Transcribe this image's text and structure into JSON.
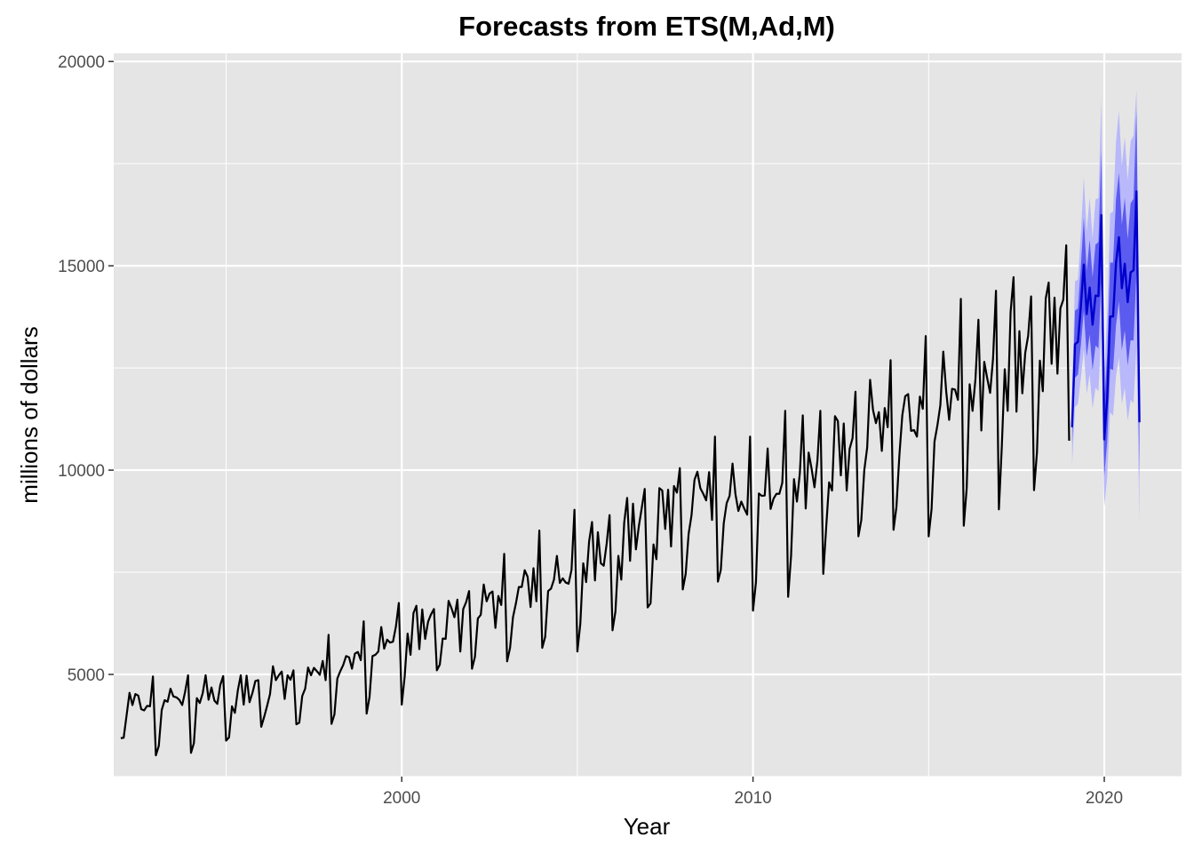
{
  "chart_data": {
    "type": "line",
    "title": "Forecasts from ETS(M,Ad,M)",
    "xlabel": "Year",
    "ylabel": "millions of dollars",
    "xlim": [
      1991.8,
      2022.2
    ],
    "ylim": [
      2500,
      20200
    ],
    "x_ticks": [
      2000,
      2010,
      2020
    ],
    "x_tick_labels": [
      "2000",
      "2010",
      "2020"
    ],
    "x_minor_ticks": [
      1995,
      2005,
      2015
    ],
    "y_ticks": [
      5000,
      10000,
      15000,
      20000
    ],
    "y_tick_labels": [
      "5000",
      "10000",
      "15000",
      "20000"
    ],
    "y_minor_ticks": [
      2500,
      7500,
      12500,
      17500
    ],
    "grid": true,
    "legend": "none",
    "colors": {
      "panel": "#e5e5e5",
      "grid": "#ffffff",
      "history": "#000000",
      "forecast": "#0000cc",
      "pi80": "#5b5bf0",
      "pi95": "#b8b8fb"
    },
    "series": [
      {
        "role": "history",
        "start": [
          1992,
          1
        ],
        "frequency": 12,
        "values": [
          3440,
          3450,
          4000,
          4550,
          4250,
          4520,
          4480,
          4150,
          4120,
          4230,
          4220,
          4950,
          3020,
          3250,
          4130,
          4370,
          4330,
          4650,
          4460,
          4440,
          4380,
          4250,
          4580,
          4980,
          3080,
          3320,
          4420,
          4300,
          4540,
          4980,
          4380,
          4680,
          4360,
          4280,
          4740,
          4960,
          3380,
          3460,
          4220,
          4060,
          4610,
          4980,
          4260,
          4970,
          4320,
          4550,
          4840,
          4860,
          3720,
          3960,
          4230,
          4520,
          5200,
          4860,
          4980,
          5070,
          4400,
          4980,
          4870,
          5100,
          3780,
          3820,
          4470,
          4650,
          5170,
          4980,
          5160,
          5080,
          4990,
          5330,
          4860,
          5970,
          3790,
          4020,
          4900,
          5080,
          5230,
          5450,
          5420,
          5140,
          5510,
          5550,
          5350,
          6300,
          4040,
          4450,
          5450,
          5480,
          5560,
          6160,
          5630,
          5850,
          5780,
          5800,
          6170,
          6750,
          4260,
          4950,
          6000,
          5480,
          6500,
          6680,
          5620,
          6590,
          5870,
          6290,
          6470,
          6600,
          5100,
          5240,
          5880,
          5870,
          6800,
          6620,
          6400,
          6830,
          5560,
          6600,
          6770,
          7040,
          5140,
          5430,
          6370,
          6460,
          7200,
          6790,
          6980,
          7030,
          6140,
          6920,
          6700,
          7950,
          5320,
          5650,
          6400,
          6740,
          7140,
          7140,
          7550,
          7390,
          6650,
          7600,
          6790,
          8520,
          5650,
          5920,
          7040,
          7100,
          7320,
          7900,
          7240,
          7350,
          7250,
          7220,
          7560,
          9030,
          5560,
          6240,
          7720,
          7260,
          8250,
          8730,
          7300,
          8480,
          7720,
          7660,
          8200,
          8900,
          6080,
          6540,
          7900,
          7320,
          8720,
          9320,
          7780,
          9180,
          8060,
          8630,
          9080,
          9540,
          6640,
          6740,
          8180,
          7820,
          9560,
          9500,
          8560,
          9520,
          8130,
          9610,
          9450,
          10050,
          7080,
          7460,
          8440,
          8900,
          9760,
          9960,
          9560,
          9420,
          9260,
          9950,
          8780,
          10820,
          7270,
          7560,
          8700,
          9190,
          9370,
          10160,
          9410,
          9000,
          9230,
          9060,
          8910,
          10820,
          6560,
          7250,
          9430,
          9370,
          9380,
          10530,
          9050,
          9300,
          9420,
          9420,
          9690,
          11450,
          6900,
          7900,
          9780,
          9230,
          9930,
          11340,
          9060,
          10430,
          10040,
          9580,
          10230,
          11450,
          7460,
          8600,
          9700,
          9500,
          11320,
          11200,
          9870,
          11140,
          9500,
          10520,
          10780,
          11920,
          8380,
          8780,
          9990,
          10550,
          12210,
          11470,
          11150,
          11420,
          10470,
          11520,
          11050,
          12690,
          8540,
          9100,
          10360,
          11340,
          11810,
          11860,
          10960,
          10980,
          10820,
          11800,
          11500,
          13280,
          8380,
          9050,
          10700,
          11100,
          11590,
          12900,
          11920,
          11230,
          11990,
          11970,
          11720,
          14190,
          8640,
          9560,
          12100,
          11450,
          12240,
          13680,
          10970,
          12650,
          12250,
          11890,
          12730,
          14390,
          9040,
          10590,
          12470,
          11450,
          13870,
          14720,
          11430,
          13400,
          11880,
          12870,
          13290,
          14250,
          9510,
          10430,
          12680,
          11930,
          14200,
          14590,
          12600,
          14220,
          12360,
          13960,
          14170,
          15500,
          10720
        ]
      },
      {
        "role": "forecast",
        "name": "point forecast",
        "start": [
          2019,
          2
        ],
        "frequency": 12,
        "values": [
          11050,
          13080,
          13140,
          14010,
          15030,
          13820,
          14470,
          13560,
          14270,
          14260,
          16240,
          10750,
          11770,
          13760,
          13760,
          15060,
          15700,
          14450,
          15050,
          14110,
          14840,
          14890,
          16820,
          11170
        ]
      },
      {
        "role": "interval",
        "name": "80% prediction interval",
        "lower": [
          10650,
          12260,
          12340,
          13060,
          13900,
          12780,
          13320,
          12450,
          13050,
          12980,
          14680,
          9860,
          10700,
          12480,
          12450,
          13540,
          14130,
          12930,
          13420,
          12560,
          13180,
          13170,
          14830,
          9850
        ],
        "upper": [
          11450,
          13900,
          13960,
          14980,
          16180,
          14880,
          15640,
          14720,
          15520,
          15580,
          17800,
          11680,
          12850,
          15080,
          15080,
          16620,
          17270,
          16010,
          16660,
          15650,
          16530,
          16640,
          18820,
          12510
        ]
      },
      {
        "role": "interval",
        "name": "95% prediction interval",
        "lower": [
          10120,
          11540,
          11620,
          12250,
          12960,
          11870,
          12350,
          11510,
          12020,
          11930,
          13420,
          9100,
          9840,
          11410,
          11330,
          12290,
          12760,
          11620,
          12020,
          11210,
          11720,
          11640,
          13020,
          8750
        ],
        "upper": [
          11980,
          14620,
          14660,
          15790,
          17160,
          15830,
          16680,
          15670,
          16620,
          16660,
          19060,
          12480,
          13810,
          16280,
          16330,
          18030,
          18790,
          17440,
          18160,
          17080,
          18050,
          18190,
          19300,
          13510
        ]
      }
    ]
  }
}
